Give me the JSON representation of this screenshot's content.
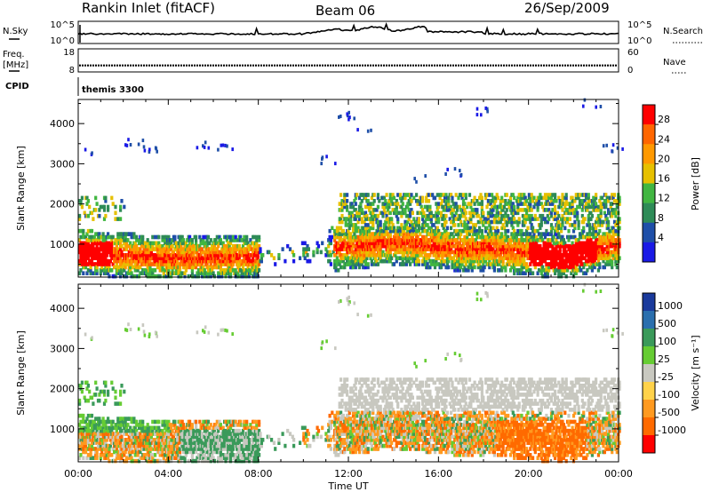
{
  "header": {
    "station": "Rankin Inlet (fitACF)",
    "beam": "Beam 06",
    "date": "26/Sep/2009"
  },
  "noise_panel": {
    "left_label": "N.Sky",
    "left_ticks": [
      "10^5",
      "10^0"
    ],
    "right_ticks": [
      "10^5",
      "10^0"
    ],
    "right_label": "N.Search"
  },
  "freq_panel": {
    "left_label_1": "Freq.",
    "left_label_2": "[MHz]",
    "left_ticks": [
      "18",
      "8"
    ],
    "right_ticks": [
      "60",
      "0"
    ],
    "right_label": "Nave",
    "freq_level": 10.8,
    "ylim": [
      8,
      18
    ]
  },
  "cpid": {
    "label": "CPID",
    "value": "themis 3300"
  },
  "colors": {
    "power": [
      "#1a1ae6",
      "#1f4fa8",
      "#2e8b57",
      "#41b641",
      "#e6c000",
      "#ff9900",
      "#ff6600",
      "#ff0000"
    ],
    "velocity": [
      "#1a3a9c",
      "#2a6fae",
      "#3a9a5a",
      "#66cc33",
      "#c8c8c0",
      "#ffd24a",
      "#ff9a20",
      "#ff6a00",
      "#ff0000"
    ]
  },
  "chart_data": [
    {
      "type": "heatmap",
      "title": "Power",
      "ylabel": "Slant Range [km]",
      "xlabel": "Time UT",
      "x_ticks": [
        "00:00",
        "04:00",
        "08:00",
        "12:00",
        "16:00",
        "20:00",
        "00:00"
      ],
      "y_ticks": [
        "1000",
        "2000",
        "3000",
        "4000"
      ],
      "ylim": [
        180,
        4600
      ],
      "xlim_hours": [
        0,
        24
      ],
      "colorbar": {
        "label": "Power [dB]",
        "ticks": [
          "28",
          "24",
          "20",
          "16",
          "12",
          "8",
          "4"
        ]
      }
    },
    {
      "type": "heatmap",
      "title": "Velocity",
      "ylabel": "Slant Range [km]",
      "xlabel": "Time UT",
      "x_ticks": [
        "00:00",
        "04:00",
        "08:00",
        "12:00",
        "16:00",
        "20:00",
        "00:00"
      ],
      "y_ticks": [
        "1000",
        "2000",
        "3000",
        "4000"
      ],
      "ylim": [
        180,
        4600
      ],
      "xlim_hours": [
        0,
        24
      ],
      "colorbar": {
        "label": "Velocity [m s⁻¹]",
        "ticks": [
          "1000",
          "500",
          "100",
          "25",
          "-25",
          "-100",
          "-500",
          "-1000"
        ]
      }
    }
  ]
}
